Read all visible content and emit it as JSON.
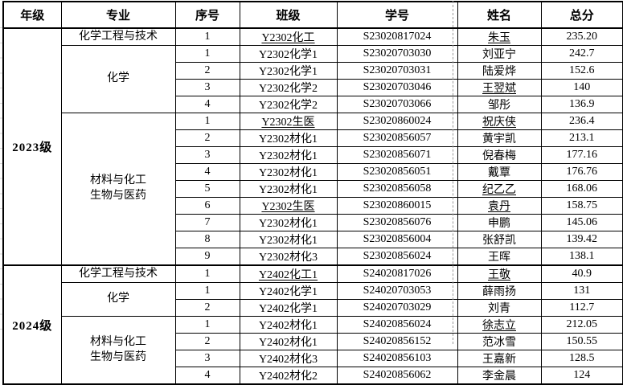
{
  "colors": {
    "table_border": "#000000",
    "page_break_line": "#9a9a9a",
    "margin_gridline": "#d9d9d9",
    "background": "#ffffff"
  },
  "columns": [
    "年级",
    "专业",
    "序号",
    "班级",
    "学号",
    "姓名",
    "总分"
  ],
  "groups": [
    {
      "grade": "2023级",
      "majors": [
        {
          "name": "化学工程与技术",
          "rows": [
            {
              "no": "1",
              "cls": "Y2302化工",
              "cls_u": true,
              "sid": "S23020817024",
              "name": "朱玉",
              "name_u": true,
              "score": "235.20"
            }
          ]
        },
        {
          "name": "化学",
          "rows": [
            {
              "no": "1",
              "cls": "Y2302化学1",
              "cls_u": false,
              "sid": "S23020703030",
              "name": "刘亚宁",
              "name_u": false,
              "score": "242.7"
            },
            {
              "no": "2",
              "cls": "Y2302化学1",
              "cls_u": false,
              "sid": "S23020703031",
              "name": "陆爱烨",
              "name_u": false,
              "score": "152.6"
            },
            {
              "no": "3",
              "cls": "Y2302化学2",
              "cls_u": false,
              "sid": "S23020703046",
              "name": "王翌斌",
              "name_u": true,
              "score": "140"
            },
            {
              "no": "4",
              "cls": "Y2302化学2",
              "cls_u": false,
              "sid": "S23020703066",
              "name": "邹彤",
              "name_u": false,
              "score": "136.9"
            }
          ]
        },
        {
          "name": "材料与化工\n生物与医药",
          "rows": [
            {
              "no": "1",
              "cls": "Y2302生医",
              "cls_u": true,
              "sid": "S23020860024",
              "name": "祝庆侠",
              "name_u": true,
              "score": "236.4"
            },
            {
              "no": "2",
              "cls": "Y2302材化1",
              "cls_u": false,
              "sid": "S23020856057",
              "name": "黄宇凯",
              "name_u": false,
              "score": "213.1"
            },
            {
              "no": "3",
              "cls": "Y2302材化1",
              "cls_u": false,
              "sid": "S23020856071",
              "name": "倪春梅",
              "name_u": false,
              "score": "177.16"
            },
            {
              "no": "4",
              "cls": "Y2302材化1",
              "cls_u": false,
              "sid": "S23020856051",
              "name": "戴覃",
              "name_u": false,
              "score": "176.76"
            },
            {
              "no": "5",
              "cls": "Y2302材化1",
              "cls_u": false,
              "sid": "S23020856058",
              "name": "纪乙乙",
              "name_u": true,
              "score": "168.06"
            },
            {
              "no": "6",
              "cls": "Y2302生医",
              "cls_u": true,
              "sid": "S23020860015",
              "name": "袁丹",
              "name_u": true,
              "score": "158.75"
            },
            {
              "no": "7",
              "cls": "Y2302材化1",
              "cls_u": false,
              "sid": "S23020856076",
              "name": "申鹏",
              "name_u": false,
              "score": "145.06"
            },
            {
              "no": "8",
              "cls": "Y2302材化1",
              "cls_u": false,
              "sid": "S23020856004",
              "name": "张舒凯",
              "name_u": false,
              "score": "139.42"
            },
            {
              "no": "9",
              "cls": "Y2302材化3",
              "cls_u": false,
              "sid": "S23020856024",
              "name": "王晖",
              "name_u": false,
              "score": "138.1"
            }
          ]
        }
      ]
    },
    {
      "grade": "2024级",
      "majors": [
        {
          "name": "化学工程与技术",
          "rows": [
            {
              "no": "1",
              "cls": "Y2402化工1",
              "cls_u": true,
              "sid": "S24020817026",
              "name": "王敬",
              "name_u": true,
              "score": "40.9"
            }
          ]
        },
        {
          "name": "化学",
          "rows": [
            {
              "no": "1",
              "cls": "Y2402化学1",
              "cls_u": false,
              "sid": "S24020703053",
              "name": "薛雨扬",
              "name_u": false,
              "score": "131"
            },
            {
              "no": "2",
              "cls": "Y2402化学1",
              "cls_u": false,
              "sid": "S24020703029",
              "name": "刘青",
              "name_u": false,
              "score": "112.7"
            }
          ]
        },
        {
          "name": "材料与化工\n生物与医药",
          "rows": [
            {
              "no": "1",
              "cls": "Y2402材化1",
              "cls_u": false,
              "sid": "S24020856024",
              "name": "徐志立",
              "name_u": true,
              "score": "212.05"
            },
            {
              "no": "2",
              "cls": "Y2402材化1",
              "cls_u": false,
              "sid": "S24020856152",
              "name": "范冰雪",
              "name_u": false,
              "score": "150.55"
            },
            {
              "no": "3",
              "cls": "Y2402材化3",
              "cls_u": false,
              "sid": "S24020856103",
              "name": "王嘉新",
              "name_u": false,
              "score": "128.5"
            },
            {
              "no": "4",
              "cls": "Y2402材化2",
              "cls_u": false,
              "sid": "S24020856062",
              "name": "李金晨",
              "name_u": false,
              "score": "124"
            }
          ]
        }
      ]
    }
  ]
}
